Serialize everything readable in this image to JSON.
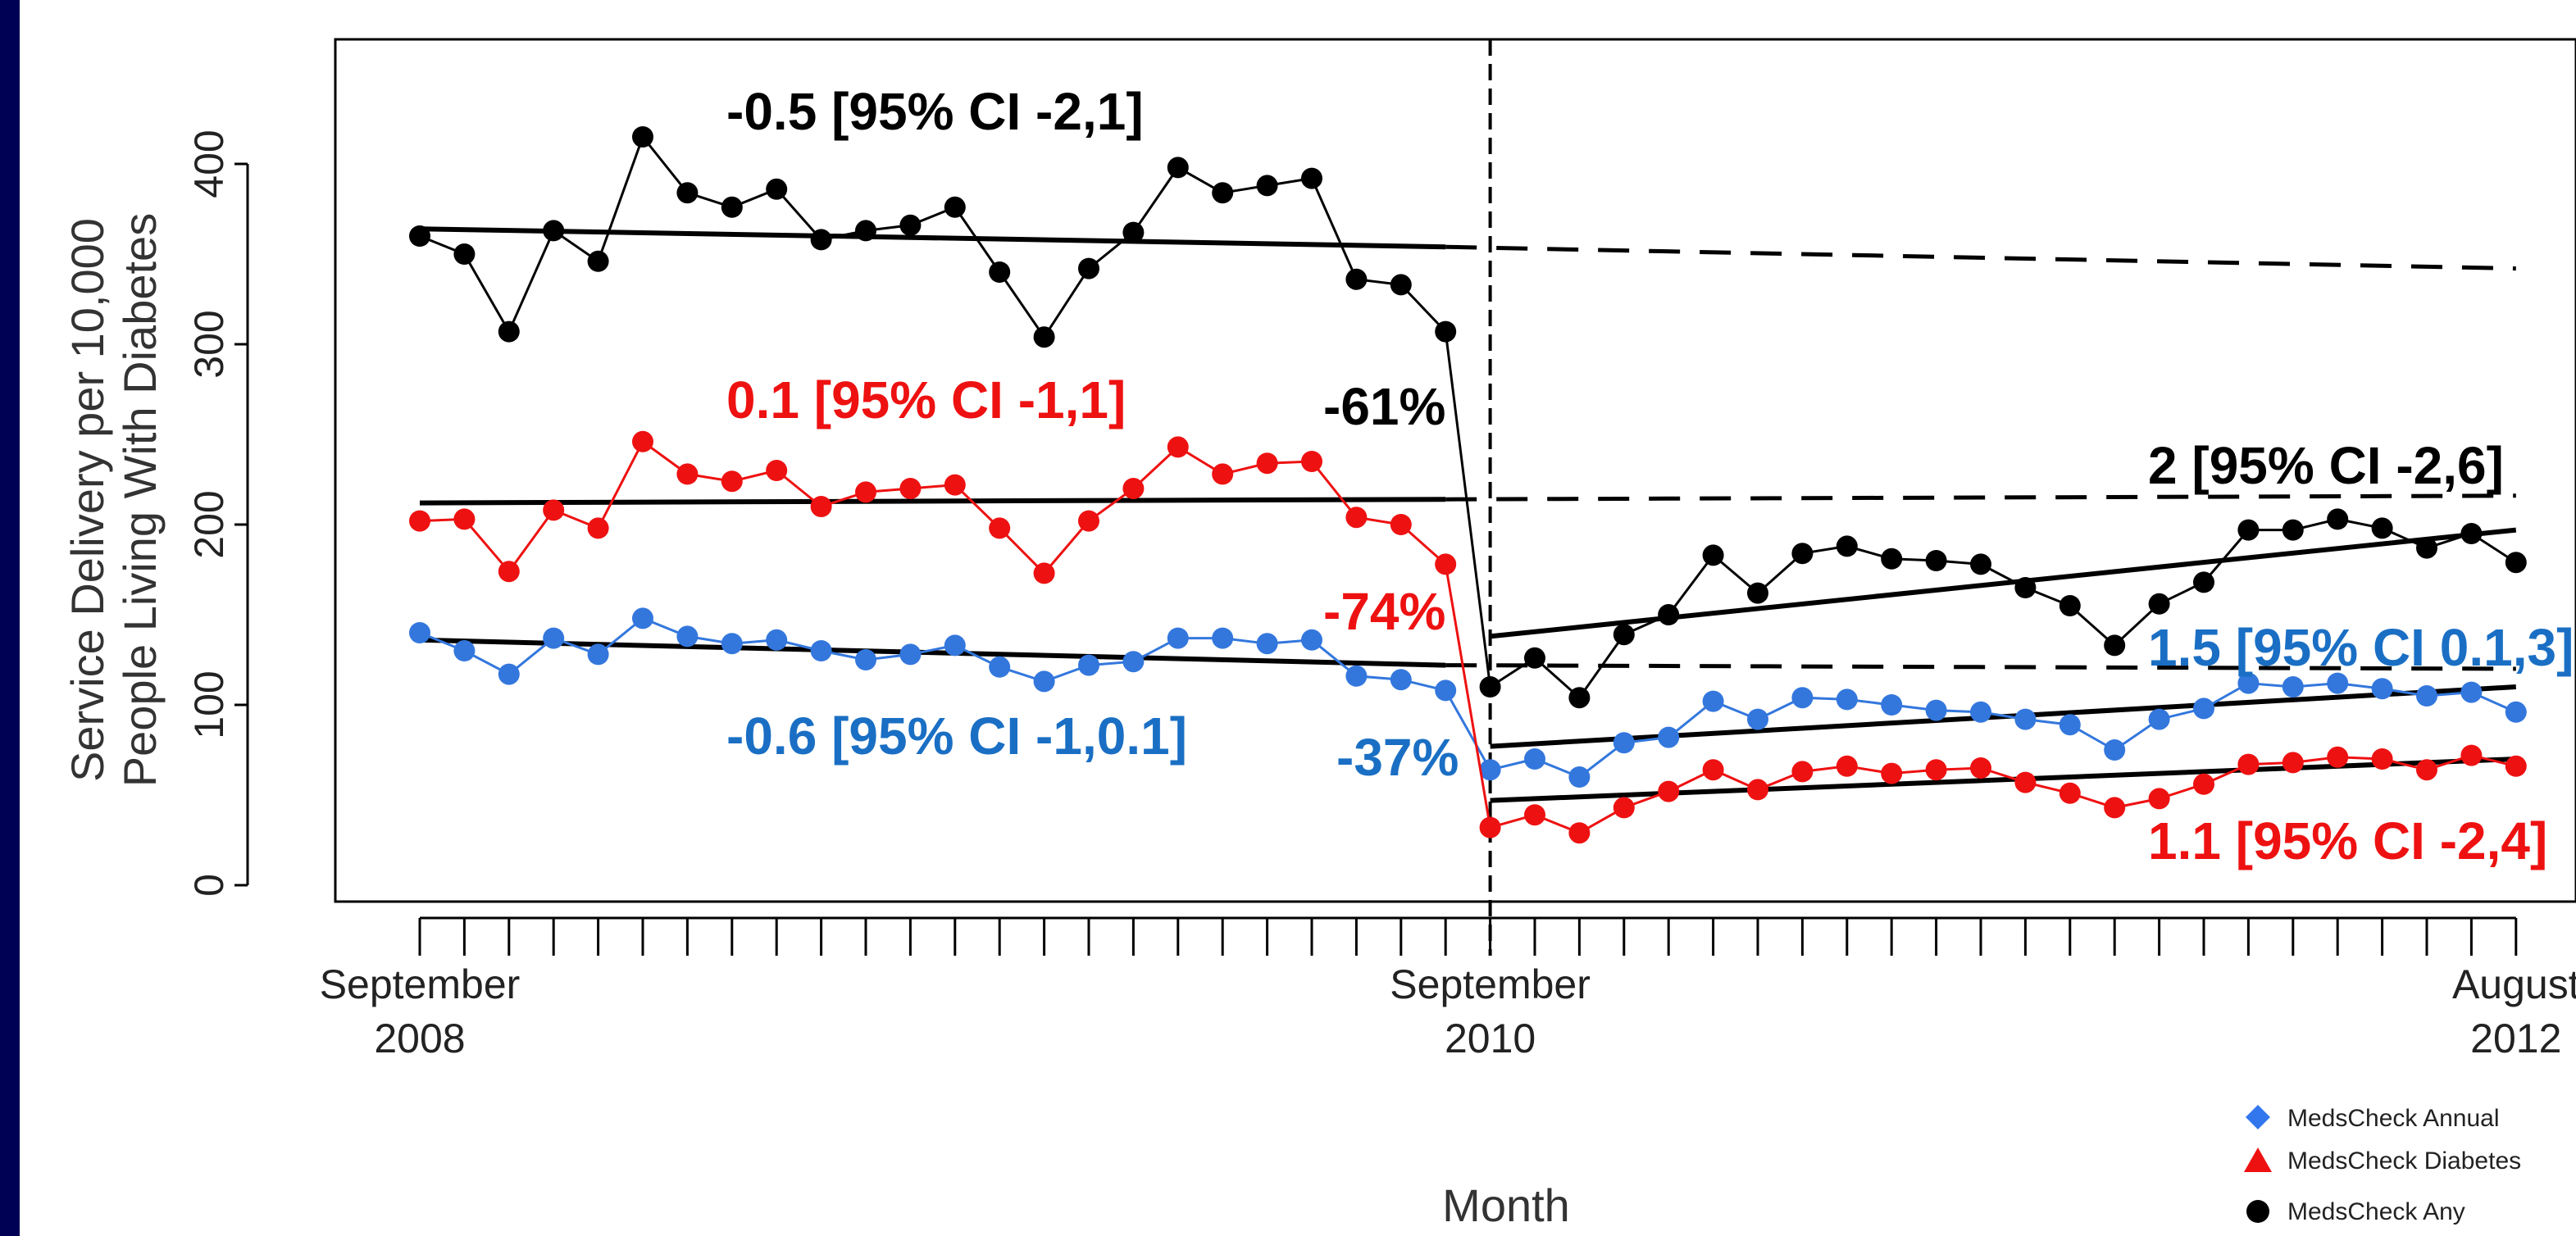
{
  "chart_data": {
    "type": "line",
    "title": "",
    "xlabel": "Month",
    "ylabel_line1": "Service Delivery per 10,000",
    "ylabel_line2": "People Living With Diabetes",
    "ylim": [
      0,
      450
    ],
    "yticks": [
      0,
      100,
      200,
      300,
      400
    ],
    "x_tick_labels": [
      {
        "month": "September",
        "year": "2008",
        "index": 0
      },
      {
        "month": "September",
        "year": "2010",
        "index": 24
      },
      {
        "month": "August",
        "year": "2012",
        "index": 47
      }
    ],
    "intervention_index": 24,
    "series": [
      {
        "name": "MedsCheck Any",
        "color": "#000000",
        "marker": "circle",
        "values": [
          360,
          350,
          307,
          363,
          346,
          415,
          384,
          376,
          386,
          358,
          363,
          366,
          376,
          340,
          304,
          342,
          362,
          398,
          384,
          388,
          392,
          336,
          333,
          307,
          110,
          126,
          104,
          139,
          150,
          183,
          162,
          184,
          188,
          181,
          180,
          178,
          165,
          155,
          133,
          156,
          168,
          197,
          197,
          203,
          198,
          187,
          195,
          179
        ],
        "pre_trend": [
          364,
          354
        ],
        "post_trend": [
          138,
          197
        ],
        "counterfactual": [
          354,
          342
        ]
      },
      {
        "name": "MedsCheck Diabetes",
        "color": "#ee1111",
        "marker": "triangle",
        "values": [
          202,
          203,
          174,
          208,
          198,
          246,
          228,
          224,
          230,
          210,
          218,
          220,
          222,
          198,
          173,
          202,
          220,
          243,
          228,
          234,
          235,
          204,
          200,
          178,
          32,
          39,
          29,
          43,
          52,
          64,
          53,
          63,
          66,
          62,
          64,
          65,
          57,
          51,
          43,
          48,
          56,
          67,
          68,
          71,
          70,
          64,
          72,
          66
        ],
        "pre_trend": [
          212,
          214
        ],
        "post_trend": [
          47,
          70
        ],
        "counterfactual": [
          214,
          216
        ]
      },
      {
        "name": "MedsCheck Annual",
        "color": "#3377dd",
        "marker": "diamond",
        "values": [
          140,
          130,
          117,
          137,
          128,
          148,
          138,
          134,
          136,
          130,
          125,
          128,
          133,
          121,
          113,
          122,
          124,
          137,
          137,
          134,
          136,
          116,
          114,
          108,
          64,
          70,
          60,
          79,
          82,
          102,
          92,
          104,
          103,
          100,
          97,
          96,
          92,
          89,
          75,
          92,
          98,
          112,
          110,
          112,
          109,
          105,
          107,
          96
        ],
        "pre_trend": [
          136,
          122
        ],
        "post_trend": [
          77,
          110
        ],
        "counterfactual": [
          122,
          120
        ]
      }
    ],
    "annotations": [
      {
        "text": "-0.5 [95% CI -2,1]",
        "color": "#000000"
      },
      {
        "text": "0.1 [95% CI -1,1]",
        "color": "#ee1111"
      },
      {
        "text": "-0.6 [95% CI -1,0.1]",
        "color": "#1a6fc4"
      },
      {
        "text": "-61%",
        "color": "#000000"
      },
      {
        "text": "-74%",
        "color": "#ee1111"
      },
      {
        "text": "-37%",
        "color": "#1a6fc4"
      },
      {
        "text": "2 [95% CI -2,6]",
        "color": "#000000"
      },
      {
        "text": "1.5 [95% CI 0.1,3]",
        "color": "#1a6fc4"
      },
      {
        "text": "1.1 [95% CI -2,4]",
        "color": "#ee1111"
      }
    ],
    "legend": {
      "placement": "bottom-right",
      "entries": [
        {
          "label": "MedsCheck Annual",
          "color": "#3377ee",
          "marker": "diamond"
        },
        {
          "label": "MedsCheck Diabetes",
          "color": "#ee1111",
          "marker": "triangle"
        },
        {
          "label": "MedsCheck Any",
          "color": "#000000",
          "marker": "circle"
        }
      ]
    }
  }
}
